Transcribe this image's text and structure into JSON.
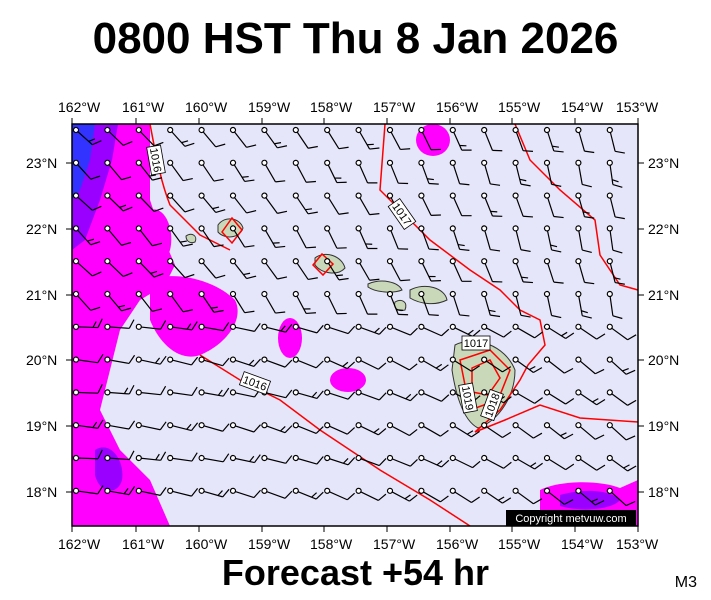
{
  "title": "0800 HST Thu 8 Jan 2026",
  "footer": "Forecast +54 hr",
  "model_tag": "M3",
  "copyright": "Copyright metvuw.com",
  "lon_labels": [
    "162°W",
    "161°W",
    "160°W",
    "159°W",
    "158°W",
    "157°W",
    "156°W",
    "155°W",
    "154°W",
    "153°W"
  ],
  "lat_labels": [
    "23°N",
    "22°N",
    "21°N",
    "20°N",
    "19°N",
    "18°N"
  ],
  "isobar_labels": [
    "1016",
    "1017",
    "1016",
    "1017",
    "1019",
    "1018"
  ],
  "colors": {
    "background": "#e6e6fa",
    "precip_light": "#ff00ff",
    "precip_medium": "#9900ff",
    "precip_heavy": "#3333ff",
    "isobar": "#ff0000",
    "land": "#c8d8b8"
  }
}
